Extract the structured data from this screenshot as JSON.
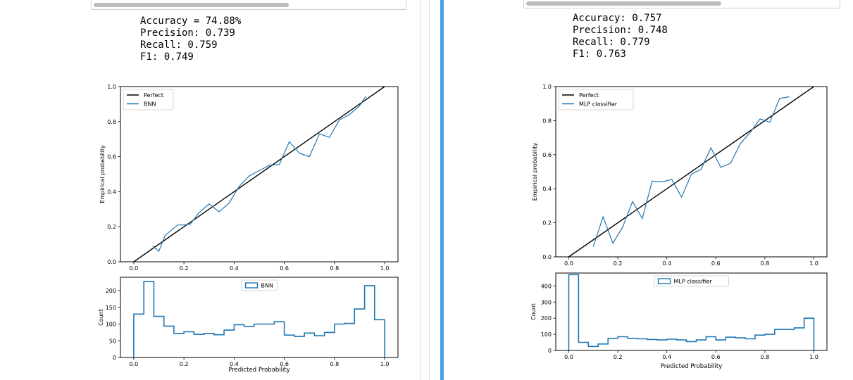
{
  "panels": [
    {
      "metrics": [
        "Accuracy = 74.88%",
        "Precision: 0.739",
        "Recall: 0.759",
        "F1: 0.749"
      ]
    },
    {
      "metrics": [
        "Accuracy: 0.757",
        "Precision: 0.748",
        "Recall: 0.779",
        "F1: 0.763"
      ]
    }
  ],
  "colors": {
    "perfect": "#000000",
    "model": "#1f77b4",
    "divider": "#4b9fe0"
  },
  "chart_data": [
    {
      "type": "line",
      "xlabel": "",
      "ylabel": "Empirical probability",
      "xlim": [
        0.0,
        1.0
      ],
      "ylim": [
        0.0,
        1.0
      ],
      "xticks": [
        "0.0",
        "0.2",
        "0.4",
        "0.6",
        "0.8",
        "1.0"
      ],
      "yticks": [
        "0.0",
        "0.2",
        "0.4",
        "0.6",
        "0.8",
        "1.0"
      ],
      "legend": "top-left",
      "series": [
        {
          "name": "Perfect",
          "x": [
            0.0,
            1.0
          ],
          "y": [
            0.0,
            1.0
          ]
        },
        {
          "name": "BNN",
          "x": [
            0.075,
            0.1,
            0.125,
            0.175,
            0.2,
            0.225,
            0.26,
            0.3,
            0.34,
            0.38,
            0.42,
            0.46,
            0.5,
            0.54,
            0.58,
            0.62,
            0.66,
            0.7,
            0.74,
            0.78,
            0.82,
            0.86,
            0.9,
            0.925
          ],
          "y": [
            0.09,
            0.06,
            0.15,
            0.21,
            0.21,
            0.215,
            0.28,
            0.33,
            0.285,
            0.335,
            0.43,
            0.49,
            0.52,
            0.55,
            0.555,
            0.685,
            0.62,
            0.6,
            0.73,
            0.71,
            0.81,
            0.84,
            0.89,
            0.945
          ]
        }
      ]
    },
    {
      "type": "histogram",
      "xlabel": "Predicted Probability",
      "ylabel": "Count",
      "xlim": [
        0.0,
        1.0
      ],
      "ylim": [
        0,
        240
      ],
      "xticks": [
        "0.0",
        "0.2",
        "0.4",
        "0.6",
        "0.8",
        "1.0"
      ],
      "yticks": [
        "0",
        "50",
        "100",
        "150",
        "200"
      ],
      "legend": "top-center",
      "series": [
        {
          "name": "BNN",
          "bin_edges": [
            0.0,
            0.04,
            0.08,
            0.12,
            0.16,
            0.2,
            0.24,
            0.28,
            0.32,
            0.36,
            0.4,
            0.44,
            0.48,
            0.52,
            0.56,
            0.6,
            0.64,
            0.68,
            0.72,
            0.76,
            0.8,
            0.84,
            0.88,
            0.92,
            0.96,
            1.0
          ],
          "counts": [
            130,
            227,
            123,
            94,
            72,
            77,
            69,
            72,
            68,
            82,
            98,
            93,
            100,
            100,
            107,
            67,
            63,
            73,
            65,
            75,
            100,
            102,
            145,
            215,
            113
          ]
        }
      ]
    },
    {
      "type": "line",
      "xlabel": "",
      "ylabel": "Empirical probability",
      "xlim": [
        0.0,
        1.0
      ],
      "ylim": [
        0.0,
        1.0
      ],
      "xticks": [
        "0.0",
        "0.2",
        "0.4",
        "0.6",
        "0.8",
        "1.0"
      ],
      "yticks": [
        "0.0",
        "0.2",
        "0.4",
        "0.6",
        "0.8",
        "1.0"
      ],
      "legend": "top-left",
      "series": [
        {
          "name": "Perfect",
          "x": [
            0.0,
            1.0
          ],
          "y": [
            0.0,
            1.0
          ]
        },
        {
          "name": "MLP classifier",
          "x": [
            0.1,
            0.14,
            0.18,
            0.22,
            0.26,
            0.3,
            0.34,
            0.38,
            0.42,
            0.46,
            0.5,
            0.54,
            0.58,
            0.62,
            0.66,
            0.7,
            0.74,
            0.78,
            0.82,
            0.86,
            0.9
          ],
          "y": [
            0.06,
            0.235,
            0.08,
            0.175,
            0.325,
            0.225,
            0.445,
            0.44,
            0.455,
            0.35,
            0.485,
            0.515,
            0.64,
            0.525,
            0.55,
            0.665,
            0.73,
            0.81,
            0.79,
            0.93,
            0.94
          ]
        }
      ]
    },
    {
      "type": "histogram",
      "xlabel": "Predicted Probability",
      "ylabel": "Count",
      "xlim": [
        0.0,
        1.0
      ],
      "ylim": [
        0,
        480
      ],
      "xticks": [
        "0.0",
        "0.2",
        "0.4",
        "0.6",
        "0.8",
        "1.0"
      ],
      "yticks": [
        "0",
        "100",
        "200",
        "300",
        "400"
      ],
      "legend": "top-center",
      "series": [
        {
          "name": "MLP classifier",
          "bin_edges": [
            0.0,
            0.04,
            0.08,
            0.12,
            0.16,
            0.2,
            0.24,
            0.28,
            0.32,
            0.36,
            0.4,
            0.44,
            0.48,
            0.52,
            0.56,
            0.6,
            0.64,
            0.68,
            0.72,
            0.76,
            0.8,
            0.84,
            0.88,
            0.92,
            0.96,
            1.0
          ],
          "counts": [
            470,
            50,
            25,
            40,
            75,
            85,
            75,
            72,
            68,
            65,
            70,
            65,
            55,
            65,
            85,
            65,
            82,
            78,
            72,
            95,
            100,
            130,
            130,
            140,
            200
          ]
        }
      ]
    }
  ]
}
